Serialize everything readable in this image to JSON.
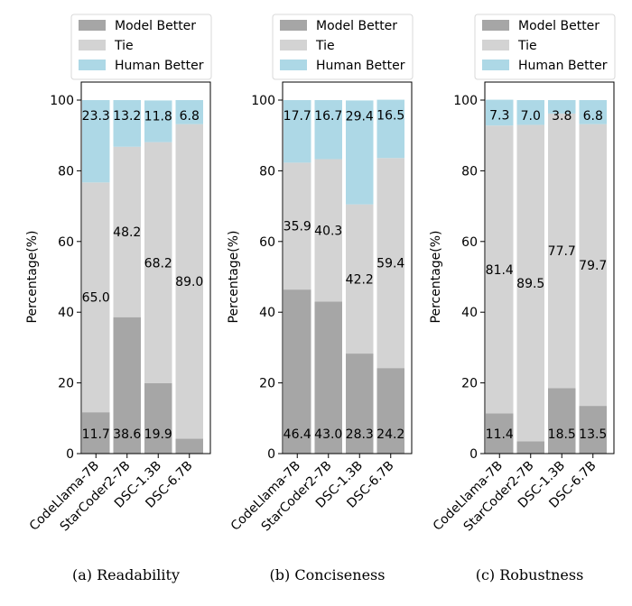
{
  "colors": {
    "model_better": "#a6a6a6",
    "tie": "#d3d3d3",
    "human_better": "#add8e6"
  },
  "chart_data": [
    {
      "type": "bar",
      "stacked": true,
      "caption": "(a) Readability",
      "ylabel": "Percentage(%)",
      "ylim": [
        0,
        100
      ],
      "yticks": [
        "0",
        "20",
        "40",
        "60",
        "80",
        "100"
      ],
      "categories": [
        "CodeLlama-7B",
        "StarCoder2-7B",
        "DSC-1.3B",
        "DSC-6.7B"
      ],
      "legend_position": "top",
      "series": [
        {
          "name": "Model Better",
          "values": [
            11.7,
            38.6,
            19.9,
            4.2
          ]
        },
        {
          "name": "Tie",
          "values": [
            65.0,
            48.2,
            68.2,
            89.0
          ]
        },
        {
          "name": "Human Better",
          "values": [
            23.3,
            13.2,
            11.8,
            6.8
          ]
        }
      ]
    },
    {
      "type": "bar",
      "stacked": true,
      "caption": "(b) Conciseness",
      "ylabel": "Percentage(%)",
      "ylim": [
        0,
        100
      ],
      "yticks": [
        "0",
        "20",
        "40",
        "60",
        "80",
        "100"
      ],
      "categories": [
        "CodeLlama-7B",
        "StarCoder2-7B",
        "DSC-1.3B",
        "DSC-6.7B"
      ],
      "legend_position": "top",
      "series": [
        {
          "name": "Model Better",
          "values": [
            46.4,
            43.0,
            28.3,
            24.2
          ]
        },
        {
          "name": "Tie",
          "values": [
            35.9,
            40.3,
            42.2,
            59.4
          ]
        },
        {
          "name": "Human Better",
          "values": [
            17.7,
            16.7,
            29.4,
            16.5
          ]
        }
      ]
    },
    {
      "type": "bar",
      "stacked": true,
      "caption": "(c) Robustness",
      "ylabel": "Percentage(%)",
      "ylim": [
        0,
        100
      ],
      "yticks": [
        "0",
        "20",
        "40",
        "60",
        "80",
        "100"
      ],
      "categories": [
        "CodeLlama-7B",
        "StarCoder2-7B",
        "DSC-1.3B",
        "DSC-6.7B"
      ],
      "legend_position": "top",
      "series": [
        {
          "name": "Model Better",
          "values": [
            11.4,
            3.5,
            18.5,
            13.5
          ]
        },
        {
          "name": "Tie",
          "values": [
            81.4,
            89.5,
            77.7,
            79.7
          ]
        },
        {
          "name": "Human Better",
          "values": [
            7.3,
            7.0,
            3.8,
            6.8
          ]
        }
      ]
    }
  ]
}
